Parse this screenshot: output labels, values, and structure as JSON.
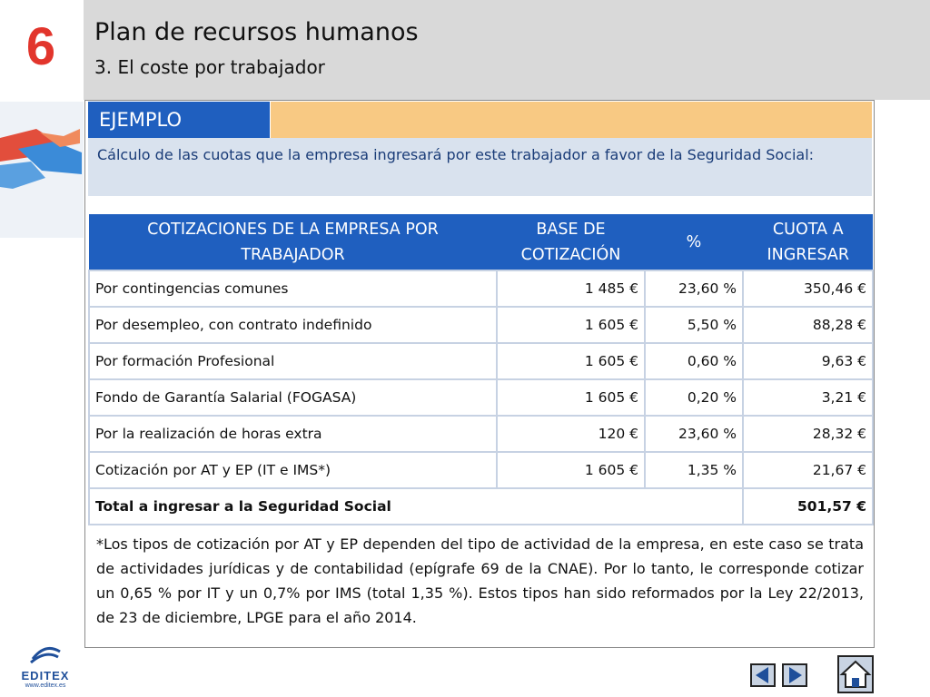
{
  "header": {
    "chapter_number": "6",
    "title": "Plan de recursos humanos",
    "subtitle": "3. El coste por trabajador"
  },
  "example": {
    "label": "EJEMPLO",
    "intro": "Cálculo de las cuotas que la empresa ingresará por este trabajador a favor de la Seguridad Social:"
  },
  "table": {
    "headers": [
      "COTIZACIONES DE LA EMPRESA POR TRABAJADOR",
      "BASE DE COTIZACIÓN",
      "%",
      "CUOTA A INGRESAR"
    ],
    "rows": [
      {
        "concept": "Por contingencias comunes",
        "base": "1 485 €",
        "pct": "23,60 %",
        "cuota": "350,46 €"
      },
      {
        "concept": "Por desempleo, con contrato indefinido",
        "base": "1 605 €",
        "pct": "5,50 %",
        "cuota": "88,28 €"
      },
      {
        "concept": "Por formación Profesional",
        "base": "1 605 €",
        "pct": "0,60 %",
        "cuota": "9,63 €"
      },
      {
        "concept": "Fondo de Garantía Salarial (FOGASA)",
        "base": "1 605 €",
        "pct": "0,20 %",
        "cuota": "3,21 €"
      },
      {
        "concept": "Por la realización de horas extra",
        "base": "120 €",
        "pct": "23,60 %",
        "cuota": "28,32 €"
      },
      {
        "concept": "Cotización por AT y EP (IT e IMS*)",
        "base": "1 605 €",
        "pct": "1,35 %",
        "cuota": "21,67 €"
      }
    ],
    "total_label": "Total a ingresar a la Seguridad Social",
    "total_value": "501,57 €"
  },
  "footnote": "*Los tipos de cotización por AT y EP dependen del tipo de actividad de la empresa, en este caso se trata de actividades jurídicas y de contabilidad (epígrafe 69 de la CNAE). Por lo tanto, le corresponde cotizar un 0,65 % por IT y un 0,7% por IMS (total 1,35 %). Estos tipos han sido reformados por la Ley 22/2013, de 23 de diciembre, LPGE para el año 2014.",
  "logo": {
    "name": "EDITEX",
    "url": "www.editex.es"
  },
  "icons": {
    "prev": "left-triangle-icon",
    "next": "right-triangle-icon",
    "home": "house-icon"
  },
  "colors": {
    "chapter_red": "#e2352c",
    "table_header_blue": "#1f5fbf",
    "example_bar_orange": "#f8c983",
    "intro_bg": "#d9e2ee"
  }
}
